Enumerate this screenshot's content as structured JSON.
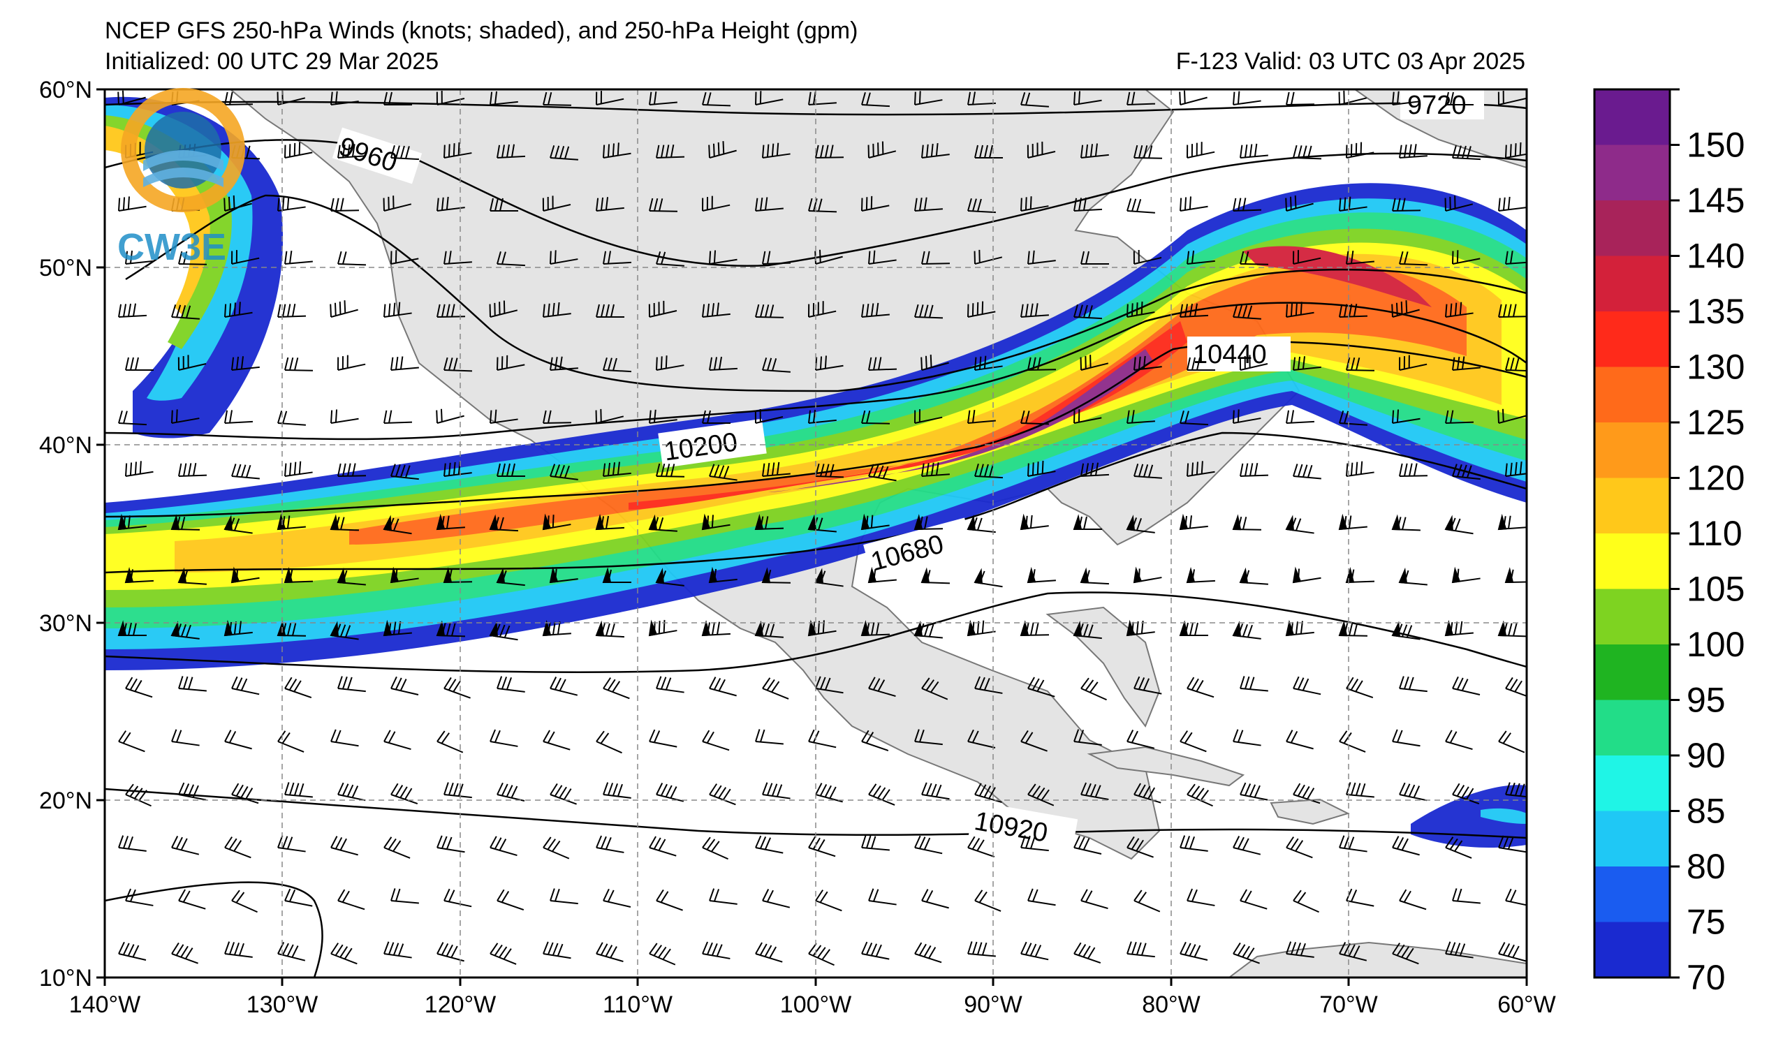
{
  "header": {
    "title": "NCEP GFS 250-hPa Winds (knots; shaded), and 250-hPa Height (gpm)",
    "initialized": "Initialized: 00 UTC 29 Mar 2025",
    "valid": "F-123  Valid: 03 UTC 03 Apr 2025"
  },
  "logo": {
    "text": "CW3E"
  },
  "axes": {
    "lat_labels": [
      "60°N",
      "50°N",
      "40°N",
      "30°N",
      "20°N",
      "10°N"
    ],
    "lon_labels": [
      "140°W",
      "130°W",
      "120°W",
      "110°W",
      "100°W",
      "90°W",
      "80°W",
      "70°W",
      "60°W"
    ]
  },
  "contours": {
    "labels": [
      "9720",
      "9960",
      "10200",
      "10440",
      "10680",
      "10920"
    ]
  },
  "colorbar": {
    "labels": [
      "150",
      "145",
      "140",
      "135",
      "130",
      "125",
      "120",
      "110",
      "105",
      "100",
      "95",
      "90",
      "85",
      "80",
      "75",
      "70"
    ],
    "colors": [
      "#6a1b8f",
      "#8e2b8a",
      "#a8235a",
      "#d3213a",
      "#ff2a1a",
      "#ff6a1a",
      "#ff9a1a",
      "#ffc81a",
      "#ffff1a",
      "#7ed321",
      "#1fb421",
      "#22dd88",
      "#1ff5e6",
      "#1fc8f5",
      "#1a5cf0",
      "#1a2ad0"
    ]
  },
  "colors": {
    "land": "#e4e4e4",
    "ocean": "#ffffff",
    "jet_core": "#8e2b8a"
  }
}
